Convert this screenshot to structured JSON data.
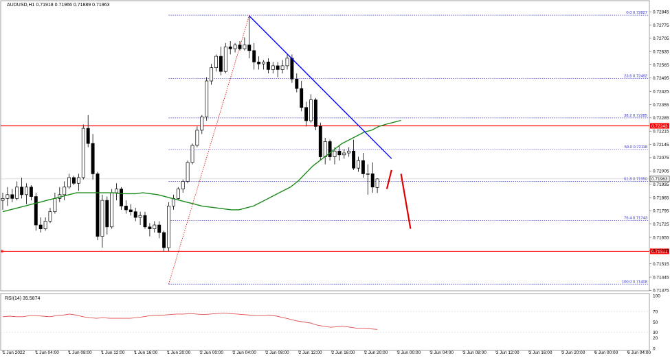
{
  "header": {
    "symbol_line": "AUDUSD,H1  0.71918 0.71966 0.71889 0.71963"
  },
  "rsi_panel": {
    "label": "RSI(14) 35.5874"
  },
  "colors": {
    "bull": "#ffffff",
    "bear": "#000000",
    "ma": "#1a8a1a",
    "trendline": "#0000ff",
    "horizontal": "#ff0000",
    "fib": "#3333cc",
    "rsi": "#e05050",
    "projection": "#e00000"
  },
  "chart_data": [
    {
      "type": "candlestick",
      "symbol": "AUDUSD",
      "timeframe": "H1",
      "ylim": [
        0.7138,
        0.7286
      ],
      "price_ticks": [
        "0.72845",
        "0.72775",
        "0.72705",
        "0.72635",
        "0.72565",
        "0.72495",
        "0.72425",
        "0.72355",
        "0.72285",
        "0.72215",
        "0.72145",
        "0.72075",
        "0.72005",
        "0.71935",
        "0.71865",
        "0.71795",
        "0.71725",
        "0.71655",
        "0.71585",
        "0.71515",
        "0.71445",
        "0.71375"
      ],
      "time_labels": [
        "1 Jun 2022",
        "1 Jun 04:00",
        "1 Jun 08:00",
        "1 Jun 12:00",
        "1 Jun 16:00",
        "1 Jun 20:00",
        "2 Jun 00:00",
        "2 Jun 04:00",
        "2 Jun 08:00",
        "2 Jun 12:00",
        "2 Jun 16:00",
        "2 Jun 20:00",
        "3 Jun 00:00",
        "3 Jun 04:00",
        "3 Jun 08:00",
        "3 Jun 12:00",
        "3 Jun 16:00",
        "3 Jun 20:00",
        "6 Jun 00:00",
        "6 Jun 04:00"
      ],
      "ohlc": [
        [
          0.7185,
          0.7189,
          0.718,
          0.7186
        ],
        [
          0.7186,
          0.7192,
          0.7182,
          0.7188
        ],
        [
          0.7188,
          0.7191,
          0.7184,
          0.7186
        ],
        [
          0.7186,
          0.7195,
          0.7185,
          0.7192
        ],
        [
          0.7192,
          0.7197,
          0.7186,
          0.7188
        ],
        [
          0.7188,
          0.7194,
          0.7183,
          0.7192
        ],
        [
          0.7192,
          0.7193,
          0.7185,
          0.7187
        ],
        [
          0.7187,
          0.7189,
          0.7169,
          0.7172
        ],
        [
          0.7172,
          0.7176,
          0.7168,
          0.717
        ],
        [
          0.717,
          0.7176,
          0.7169,
          0.7174
        ],
        [
          0.7174,
          0.7181,
          0.7173,
          0.7179
        ],
        [
          0.7179,
          0.7189,
          0.7178,
          0.7186
        ],
        [
          0.7186,
          0.7192,
          0.7184,
          0.7188
        ],
        [
          0.7188,
          0.7195,
          0.7185,
          0.7192
        ],
        [
          0.7192,
          0.7199,
          0.7191,
          0.7197
        ],
        [
          0.7197,
          0.7198,
          0.7193,
          0.7194
        ],
        [
          0.7194,
          0.7199,
          0.719,
          0.7197
        ],
        [
          0.7197,
          0.7225,
          0.7196,
          0.7223
        ],
        [
          0.7223,
          0.723,
          0.7213,
          0.7215
        ],
        [
          0.7215,
          0.722,
          0.7196,
          0.7199
        ],
        [
          0.7199,
          0.72,
          0.7164,
          0.7166
        ],
        [
          0.7166,
          0.7188,
          0.716,
          0.7185
        ],
        [
          0.7185,
          0.7187,
          0.7167,
          0.7171
        ],
        [
          0.7171,
          0.7191,
          0.717,
          0.7189
        ],
        [
          0.7189,
          0.7194,
          0.7185,
          0.7191
        ],
        [
          0.7191,
          0.7192,
          0.718,
          0.7182
        ],
        [
          0.7182,
          0.7185,
          0.7178,
          0.718
        ],
        [
          0.718,
          0.7183,
          0.7177,
          0.7179
        ],
        [
          0.7179,
          0.7181,
          0.7174,
          0.7176
        ],
        [
          0.7176,
          0.7179,
          0.7172,
          0.7177
        ],
        [
          0.7177,
          0.7179,
          0.717,
          0.7171
        ],
        [
          0.7171,
          0.7173,
          0.7166,
          0.717
        ],
        [
          0.717,
          0.7174,
          0.7168,
          0.7172
        ],
        [
          0.7172,
          0.7174,
          0.7165,
          0.7168
        ],
        [
          0.7168,
          0.7169,
          0.7158,
          0.716
        ],
        [
          0.716,
          0.7184,
          0.7158,
          0.7182
        ],
        [
          0.7182,
          0.7188,
          0.718,
          0.7186
        ],
        [
          0.7186,
          0.7192,
          0.7185,
          0.7191
        ],
        [
          0.7191,
          0.7196,
          0.7189,
          0.7195
        ],
        [
          0.7195,
          0.7206,
          0.7194,
          0.7205
        ],
        [
          0.7205,
          0.7215,
          0.7204,
          0.7214
        ],
        [
          0.7214,
          0.7224,
          0.7213,
          0.7222
        ],
        [
          0.7222,
          0.723,
          0.722,
          0.7229
        ],
        [
          0.7229,
          0.725,
          0.7227,
          0.7248
        ],
        [
          0.7248,
          0.7257,
          0.7246,
          0.7255
        ],
        [
          0.7255,
          0.7262,
          0.7253,
          0.7261
        ],
        [
          0.7261,
          0.7266,
          0.7251,
          0.7253
        ],
        [
          0.7253,
          0.7268,
          0.7252,
          0.7266
        ],
        [
          0.7266,
          0.7269,
          0.7262,
          0.7265
        ],
        [
          0.7265,
          0.7268,
          0.7263,
          0.7267
        ],
        [
          0.7267,
          0.7269,
          0.7264,
          0.7265
        ],
        [
          0.7265,
          0.7271,
          0.7264,
          0.7267
        ],
        [
          0.7267,
          0.72823,
          0.726,
          0.7264
        ],
        [
          0.7264,
          0.7268,
          0.7254,
          0.7258
        ],
        [
          0.7258,
          0.7261,
          0.7254,
          0.7257
        ],
        [
          0.7257,
          0.7259,
          0.7254,
          0.7258
        ],
        [
          0.7258,
          0.726,
          0.7252,
          0.7254
        ],
        [
          0.7254,
          0.7258,
          0.7252,
          0.7256
        ],
        [
          0.7256,
          0.7258,
          0.725,
          0.7254
        ],
        [
          0.7254,
          0.7259,
          0.7252,
          0.7256
        ],
        [
          0.7256,
          0.7262,
          0.7254,
          0.726
        ],
        [
          0.726,
          0.7262,
          0.7247,
          0.7249
        ],
        [
          0.7249,
          0.7252,
          0.7242,
          0.7244
        ],
        [
          0.7244,
          0.7248,
          0.7232,
          0.7234
        ],
        [
          0.7234,
          0.7237,
          0.7224,
          0.7227
        ],
        [
          0.7227,
          0.7241,
          0.7226,
          0.7238
        ],
        [
          0.7238,
          0.7239,
          0.7222,
          0.7224
        ],
        [
          0.7224,
          0.7226,
          0.7206,
          0.7208
        ],
        [
          0.7208,
          0.7218,
          0.7204,
          0.7216
        ],
        [
          0.7216,
          0.7217,
          0.7206,
          0.7208
        ],
        [
          0.7208,
          0.7213,
          0.7204,
          0.7211
        ],
        [
          0.7211,
          0.7214,
          0.7206,
          0.7209
        ],
        [
          0.7209,
          0.7212,
          0.7207,
          0.721
        ],
        [
          0.721,
          0.7213,
          0.7208,
          0.7211
        ],
        [
          0.7211,
          0.7217,
          0.7201,
          0.7202
        ],
        [
          0.7202,
          0.7208,
          0.72,
          0.7206
        ],
        [
          0.7206,
          0.721,
          0.7197,
          0.7199
        ],
        [
          0.7199,
          0.7204,
          0.7188,
          0.7199
        ],
        [
          0.7199,
          0.7205,
          0.7189,
          0.7192
        ],
        [
          0.71918,
          0.71966,
          0.71889,
          0.71963
        ]
      ],
      "moving_average": [
        0.7179,
        0.718,
        0.7181,
        0.7182,
        0.7183,
        0.7184,
        0.7185,
        0.7186,
        0.7187,
        0.7188,
        0.7189,
        0.7189,
        0.7189,
        0.7189,
        0.7189,
        0.7189,
        0.71885,
        0.71885,
        0.71885,
        0.7189,
        0.71885,
        0.7188,
        0.7187,
        0.7186,
        0.7185,
        0.7184,
        0.7183,
        0.7182,
        0.71815,
        0.7181,
        0.71805,
        0.718,
        0.718,
        0.7181,
        0.7182,
        0.7184,
        0.7186,
        0.7188,
        0.719,
        0.7192,
        0.7195,
        0.7199,
        0.7203,
        0.7206,
        0.7209,
        0.7212,
        0.7215,
        0.7217,
        0.7219,
        0.7221,
        0.7222,
        0.7224,
        0.72252,
        0.72262,
        0.72272
      ],
      "rsi_values": [
        60,
        61,
        60,
        60,
        62,
        62,
        61,
        60,
        62,
        63,
        65,
        63,
        60,
        58,
        57,
        58,
        57,
        57,
        57,
        57,
        58,
        60,
        62,
        63,
        63,
        64,
        65,
        65,
        66,
        65,
        64,
        65,
        66,
        67,
        66,
        65,
        64,
        63,
        62,
        62,
        63,
        61,
        58,
        55,
        52,
        50,
        48,
        44,
        42,
        40,
        41,
        42,
        40,
        38,
        38,
        37,
        36
      ],
      "rsi_ticks": [
        "100",
        "70",
        "50",
        "30",
        "20",
        "0"
      ],
      "fib_levels": [
        {
          "ratio": "0.0",
          "price": 0.72827,
          "label": "0.0 0.72827"
        },
        {
          "ratio": "23.6",
          "price": 0.72492,
          "label": "23.6 0.72492"
        },
        {
          "ratio": "38.2",
          "price": 0.72285,
          "label": "38.2 0.72285"
        },
        {
          "ratio": "50.0",
          "price": 0.72118,
          "label": "50.0 0.72118"
        },
        {
          "ratio": "61.8",
          "price": 0.7195,
          "label": "61.8 0.71950"
        },
        {
          "ratio": "76.4",
          "price": 0.71743,
          "label": "76.4 0.71743"
        },
        {
          "ratio": "100.0",
          "price": 0.71408,
          "label": "100.0 0.71408"
        }
      ],
      "horizontal_levels": [
        {
          "price": 0.72243,
          "label": "0.72243"
        },
        {
          "price": 0.71581,
          "label": "0.71581"
        }
      ],
      "current_price": {
        "price": 0.71963,
        "label": "0.71963"
      },
      "trendline": {
        "from": [
          52,
          0.72823
        ],
        "to": [
          82,
          0.7207
        ]
      },
      "fib_anchor": {
        "from": [
          35,
          0.71408
        ],
        "to": [
          52,
          0.72827
        ]
      },
      "projection": [
        {
          "from": [
            81,
            0.7191
          ],
          "to": [
            82,
            0.7201
          ]
        },
        {
          "from": [
            84,
            0.7199
          ],
          "to": [
            86,
            0.717
          ]
        }
      ]
    }
  ]
}
